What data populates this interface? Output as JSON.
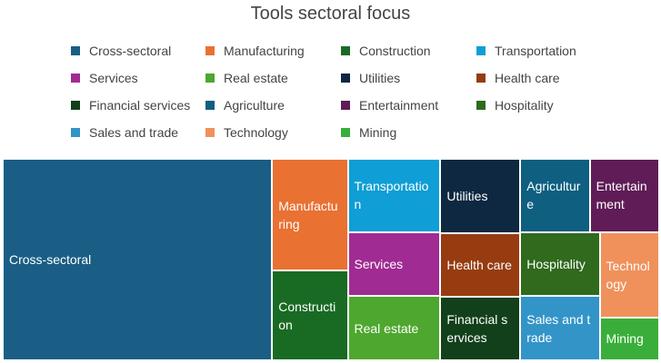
{
  "chart_data": {
    "type": "treemap",
    "title": "Tools sectoral focus",
    "categories": [
      "Cross-sectoral",
      "Manufacturing",
      "Construction",
      "Transportation",
      "Services",
      "Real estate",
      "Utilities",
      "Health care",
      "Financial services",
      "Agriculture",
      "Entertainment",
      "Hospitality",
      "Sales and trade",
      "Technology",
      "Mining"
    ],
    "values": [
      64,
      10,
      8,
      8,
      7,
      7,
      7,
      6,
      6,
      6,
      6,
      6,
      6,
      6,
      3
    ],
    "colors": [
      "#1a5e85",
      "#e97132",
      "#196b24",
      "#0f9ed5",
      "#a02b93",
      "#4ea72e",
      "#0e2841",
      "#963c10",
      "#12401a",
      "#0e5f80",
      "#5f1c56",
      "#2f6a1d",
      "#3394c8",
      "#f0915c",
      "#3aae3a"
    ],
    "legend_position": "top"
  }
}
